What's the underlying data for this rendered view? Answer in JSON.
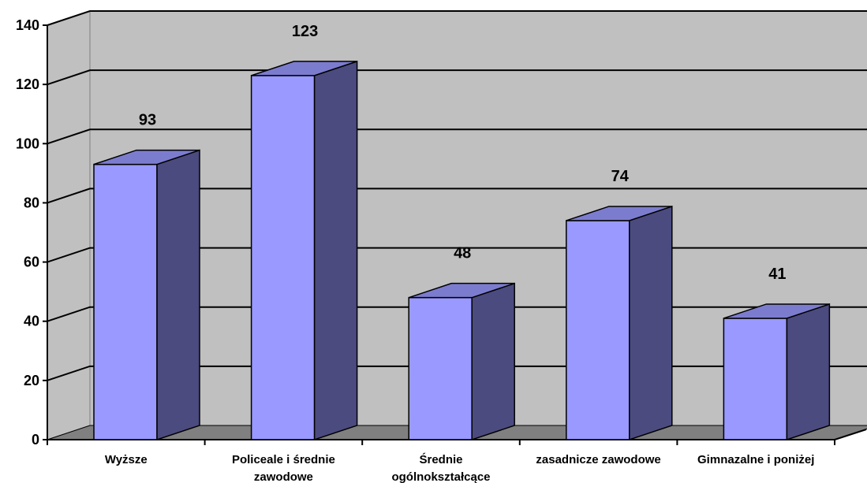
{
  "chart_data": {
    "type": "bar",
    "categories": [
      [
        "Wyższe"
      ],
      [
        "Policeale i średnie",
        "zawodowe"
      ],
      [
        "Średnie",
        "ogólnokształcące"
      ],
      [
        "zasadnicze zawodowe"
      ],
      [
        "Gimnazalne i poniżej"
      ]
    ],
    "values": [
      93,
      123,
      48,
      74,
      41
    ],
    "data_labels": [
      "93",
      "123",
      "48",
      "74",
      "41"
    ],
    "ylim": [
      0,
      140
    ],
    "yticks": [
      0,
      20,
      40,
      60,
      80,
      100,
      120,
      140
    ],
    "ytick_labels": [
      "0",
      "20",
      "40",
      "60",
      "80",
      "100",
      "120",
      "140"
    ],
    "grid": true,
    "three_d": true,
    "colors": {
      "bar_front": "#9999ff",
      "bar_side": "#4b4b80",
      "bar_top": "#7c7ccf",
      "wall": "#c0c0c0",
      "floor": "#808080",
      "gridline": "#000000"
    }
  }
}
